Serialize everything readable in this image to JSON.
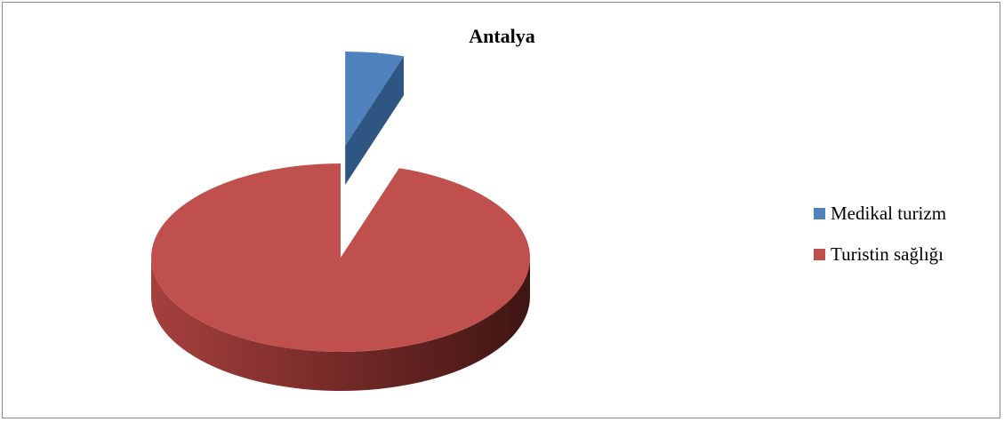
{
  "chart_data": {
    "type": "pie",
    "title": "Antalya",
    "legend_position": "right",
    "slices": [
      {
        "label": "Medikal turizm",
        "value": 5,
        "color": "#4f81bd",
        "exploded": true
      },
      {
        "label": "Turistin sağlığı",
        "value": 95,
        "color": "#c0504d",
        "exploded": false
      }
    ]
  }
}
